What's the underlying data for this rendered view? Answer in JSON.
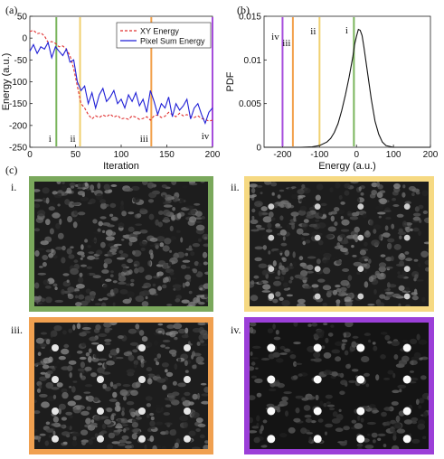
{
  "figure": {
    "panel_labels": [
      "(a)",
      "(b)",
      "(c)"
    ]
  },
  "chart_data": [
    {
      "type": "line",
      "panel": "(a)",
      "xlabel": "Iteration",
      "ylabel": "Energy (a.u.)",
      "xlim": [
        0,
        200
      ],
      "ylim": [
        -250,
        50
      ],
      "xticks": [
        0,
        50,
        100,
        150,
        200
      ],
      "yticks": [
        50,
        0,
        -50,
        -100,
        -150,
        -200,
        -250
      ],
      "grid": false,
      "legend_position": "top-right",
      "series": [
        {
          "name": "XY Energy",
          "style": "dashed",
          "color": "#e03030",
          "x": [
            0,
            4,
            8,
            12,
            16,
            20,
            24,
            28,
            32,
            36,
            40,
            44,
            48,
            52,
            56,
            60,
            64,
            68,
            72,
            76,
            80,
            84,
            88,
            92,
            96,
            100,
            104,
            108,
            112,
            116,
            120,
            124,
            128,
            132,
            136,
            140,
            144,
            148,
            152,
            156,
            160,
            164,
            168,
            172,
            176,
            180,
            184,
            188,
            192,
            196,
            200
          ],
          "y": [
            15,
            18,
            10,
            12,
            5,
            -10,
            -8,
            -12,
            -20,
            -18,
            -25,
            -40,
            -70,
            -110,
            -150,
            -160,
            -175,
            -185,
            -178,
            -182,
            -176,
            -180,
            -174,
            -181,
            -177,
            -185,
            -183,
            -186,
            -178,
            -181,
            -186,
            -184,
            -180,
            -188,
            -178,
            -176,
            -182,
            -179,
            -170,
            -175,
            -180,
            -172,
            -178,
            -175,
            -180,
            -182,
            -178,
            -184,
            -186,
            -190,
            -188
          ]
        },
        {
          "name": "Pixel Sum Energy",
          "style": "solid",
          "color": "#1f1fd6",
          "x": [
            0,
            4,
            8,
            12,
            16,
            20,
            24,
            28,
            32,
            36,
            40,
            44,
            48,
            52,
            56,
            60,
            64,
            68,
            72,
            76,
            80,
            84,
            88,
            92,
            96,
            100,
            104,
            108,
            112,
            116,
            120,
            124,
            128,
            132,
            136,
            140,
            144,
            148,
            152,
            156,
            160,
            164,
            168,
            172,
            176,
            180,
            184,
            188,
            192,
            196,
            200
          ],
          "y": [
            -30,
            -15,
            -35,
            -20,
            -25,
            -10,
            -45,
            -20,
            -30,
            -40,
            -25,
            -55,
            -50,
            -100,
            -120,
            -110,
            -150,
            -125,
            -160,
            -130,
            -115,
            -145,
            -135,
            -120,
            -150,
            -140,
            -160,
            -130,
            -145,
            -125,
            -155,
            -140,
            -170,
            -120,
            -145,
            -175,
            -150,
            -160,
            -135,
            -180,
            -150,
            -165,
            -155,
            -140,
            -185,
            -160,
            -150,
            -175,
            -195,
            -170,
            -160
          ]
        }
      ],
      "vlines": [
        {
          "x": 29,
          "label": "i",
          "color": "#7ab55c"
        },
        {
          "x": 55,
          "label": "ii",
          "color": "#f0d070"
        },
        {
          "x": 133,
          "label": "iii",
          "color": "#f2a04a"
        },
        {
          "x": 200,
          "label": "iv",
          "color": "#a64ddc"
        }
      ]
    },
    {
      "type": "line",
      "panel": "(b)",
      "xlabel": "Energy (a.u.)",
      "ylabel": "PDF",
      "xlim": [
        -250,
        200
      ],
      "ylim": [
        0,
        0.015
      ],
      "xticks": [
        -200,
        -100,
        0,
        100,
        200
      ],
      "ytick_labels": [
        "0",
        "0.005",
        "0.01",
        "0.015"
      ],
      "yticks": [
        0,
        0.005,
        0.01,
        0.015
      ],
      "grid": false,
      "series": [
        {
          "style": "solid",
          "color": "#111111",
          "x": [
            -250,
            -150,
            -120,
            -100,
            -80,
            -70,
            -60,
            -50,
            -40,
            -30,
            -20,
            -10,
            -5,
            0,
            5,
            10,
            15,
            20,
            30,
            40,
            50,
            60,
            70,
            80,
            100,
            200
          ],
          "y": [
            0,
            0,
            5e-05,
            0.0002,
            0.0006,
            0.001,
            0.0017,
            0.0027,
            0.0042,
            0.006,
            0.008,
            0.0103,
            0.0118,
            0.0127,
            0.0135,
            0.0134,
            0.0128,
            0.0115,
            0.0085,
            0.0055,
            0.003,
            0.0015,
            0.0006,
            0.0002,
            0,
            0
          ]
        }
      ],
      "vlines": [
        {
          "x": -200,
          "label": "iv",
          "color": "#a64ddc"
        },
        {
          "x": -172,
          "label": "iii",
          "color": "#f2a04a"
        },
        {
          "x": -100,
          "label": "ii",
          "color": "#f0d070"
        },
        {
          "x": -7,
          "label": "i",
          "color": "#7ab55c"
        }
      ]
    }
  ],
  "images": [
    {
      "label": "i.",
      "border_color": "#7aa85c",
      "spot_level": 0.0
    },
    {
      "label": "ii.",
      "border_color": "#f6d982",
      "spot_level": 0.55
    },
    {
      "label": "iii.",
      "border_color": "#f0a050",
      "spot_level": 0.8
    },
    {
      "label": "iv.",
      "border_color": "#9b3fd8",
      "spot_level": 1.0
    }
  ]
}
